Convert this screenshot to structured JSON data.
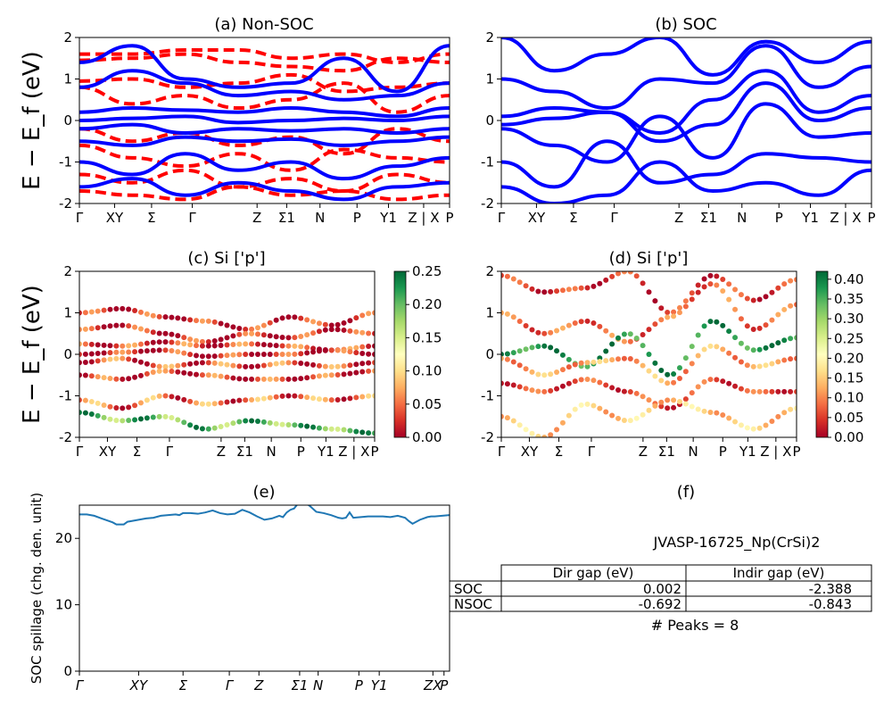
{
  "figure": {
    "ylabel_ev": "E − E_f (eV)",
    "kpath_bands": [
      "Γ",
      "XY",
      "Σ",
      "Γ",
      "Z",
      "Σ1",
      "N",
      "P",
      "Y1",
      "Z | X",
      "P"
    ],
    "kpath_spillage": [
      "Γ",
      "XY",
      "Σ",
      "Γ",
      "Z",
      "Σ1",
      "N",
      "P",
      "Y1",
      "ZX",
      "P"
    ],
    "colors": {
      "nonsoc_up": "#ff0000",
      "nonsoc_dn": "#0000ff",
      "soc": "#0000ff",
      "spillage": "#1f77b4"
    }
  },
  "chart_data": [
    {
      "id": "a",
      "type": "line",
      "title": "(a) Non-SOC",
      "ylabel": "E − E_f (eV)",
      "ylim": [
        -2,
        2
      ],
      "yticks": [
        -2,
        -1,
        0,
        1,
        2
      ],
      "series": [
        {
          "style": "dashed",
          "color": "#ff0000",
          "lines": [
            [
              1.6,
              1.6,
              1.7,
              1.7,
              1.5,
              1.6,
              1.4,
              1.6
            ],
            [
              1.45,
              1.5,
              1.6,
              1.4,
              1.3,
              1.2,
              1.5,
              1.4
            ],
            [
              0.95,
              1.0,
              0.8,
              0.9,
              1.1,
              0.7,
              0.8,
              0.9
            ],
            [
              0.8,
              0.4,
              0.6,
              0.3,
              0.5,
              0.9,
              0.2,
              0.6
            ],
            [
              -0.2,
              -0.5,
              -0.3,
              -0.6,
              -0.4,
              -0.8,
              -0.2,
              -0.5
            ],
            [
              -0.6,
              -0.9,
              -1.1,
              -0.8,
              -1.2,
              -0.7,
              -0.9,
              -1.0
            ],
            [
              -1.3,
              -1.5,
              -1.2,
              -1.6,
              -1.4,
              -1.7,
              -1.3,
              -1.5
            ],
            [
              -1.7,
              -1.8,
              -1.9,
              -1.6,
              -1.8,
              -1.7,
              -1.9,
              -1.8
            ]
          ]
        },
        {
          "style": "solid",
          "color": "#0000ff",
          "lines": [
            [
              1.4,
              1.8,
              1.0,
              0.8,
              0.9,
              1.5,
              0.7,
              1.8
            ],
            [
              0.8,
              1.2,
              0.9,
              0.6,
              0.7,
              0.5,
              0.6,
              0.9
            ],
            [
              0.2,
              0.3,
              0.25,
              0.2,
              0.3,
              0.2,
              0.1,
              0.3
            ],
            [
              0.0,
              0.05,
              0.1,
              -0.05,
              0.0,
              0.05,
              0.0,
              0.1
            ],
            [
              -0.2,
              -0.1,
              -0.3,
              -0.2,
              -0.25,
              -0.2,
              -0.3,
              -0.2
            ],
            [
              -0.5,
              -0.6,
              -0.4,
              -0.5,
              -0.45,
              -0.6,
              -0.5,
              -0.4
            ],
            [
              -1.0,
              -1.3,
              -0.8,
              -1.2,
              -1.0,
              -1.4,
              -1.1,
              -0.9
            ],
            [
              -1.6,
              -1.4,
              -1.8,
              -1.5,
              -1.7,
              -1.9,
              -1.6,
              -1.5
            ]
          ]
        }
      ]
    },
    {
      "id": "b",
      "type": "line",
      "title": "(b) SOC",
      "ylim": [
        -2,
        2
      ],
      "yticks": [
        -2,
        -1,
        0,
        1,
        2
      ],
      "series": [
        {
          "style": "solid",
          "color": "#0000ff",
          "lines": [
            [
              2.0,
              1.2,
              1.6,
              2.0,
              1.1,
              1.9,
              1.4,
              1.9
            ],
            [
              1.0,
              0.7,
              0.3,
              1.0,
              0.9,
              1.8,
              0.8,
              1.3
            ],
            [
              0.1,
              0.3,
              0.2,
              -0.3,
              0.5,
              1.2,
              0.2,
              0.6
            ],
            [
              -0.1,
              0.05,
              0.2,
              -0.5,
              -0.1,
              0.9,
              0.0,
              0.3
            ],
            [
              -0.2,
              -0.6,
              -1.0,
              0.1,
              -0.9,
              0.4,
              -0.4,
              -0.3
            ],
            [
              -1.0,
              -1.6,
              -0.5,
              -1.5,
              -1.3,
              -0.8,
              -0.9,
              -1.0
            ],
            [
              -1.6,
              -2.0,
              -1.8,
              -1.0,
              -1.7,
              -1.5,
              -1.8,
              -1.2
            ]
          ]
        }
      ]
    },
    {
      "id": "c",
      "type": "scatter",
      "title": "(c)  Si ['p']",
      "ylabel": "E − E_f (eV)",
      "ylim": [
        -2,
        2
      ],
      "yticks": [
        -2,
        -1,
        0,
        1,
        2
      ],
      "colorbar": {
        "ticks": [
          "0.00",
          "0.05",
          "0.10",
          "0.15",
          "0.20",
          "0.25"
        ],
        "range": [
          0,
          0.25
        ],
        "cmap": "RdYlGn"
      },
      "bands": [
        [
          1.0,
          1.1,
          0.9,
          0.8,
          0.6,
          0.9,
          0.7,
          1.0
        ],
        [
          0.6,
          0.7,
          0.5,
          0.3,
          0.5,
          0.4,
          0.6,
          0.5
        ],
        [
          0.25,
          0.2,
          0.3,
          0.2,
          0.25,
          0.2,
          0.1,
          0.2
        ],
        [
          0.0,
          0.05,
          0.1,
          -0.05,
          0.0,
          0.0,
          0.1,
          0.0
        ],
        [
          -0.2,
          -0.1,
          -0.3,
          -0.2,
          -0.3,
          -0.2,
          -0.3,
          -0.2
        ],
        [
          -0.5,
          -0.6,
          -0.4,
          -0.5,
          -0.6,
          -0.6,
          -0.5,
          -0.4
        ],
        [
          -1.1,
          -1.3,
          -1.0,
          -1.2,
          -1.1,
          -1.0,
          -1.1,
          -1.0
        ],
        [
          -1.4,
          -1.6,
          -1.5,
          -1.8,
          -1.6,
          -1.7,
          -1.8,
          -1.9
        ]
      ],
      "weights": [
        0.02,
        0.02,
        0.03,
        0.02,
        0.04,
        0.03,
        0.05,
        0.2
      ]
    },
    {
      "id": "d",
      "type": "scatter",
      "title": "(d) Si ['p']",
      "ylim": [
        -2,
        2
      ],
      "yticks": [
        -2,
        -1,
        0,
        1,
        2
      ],
      "colorbar": {
        "ticks": [
          "0.00",
          "0.05",
          "0.10",
          "0.15",
          "0.20",
          "0.25",
          "0.30",
          "0.35",
          "0.40"
        ],
        "range": [
          0,
          0.42
        ],
        "cmap": "RdYlGn"
      },
      "bands": [
        [
          1.9,
          1.5,
          1.6,
          2.0,
          1.0,
          1.9,
          1.3,
          1.8
        ],
        [
          1.0,
          0.5,
          0.8,
          0.3,
          0.9,
          1.7,
          0.6,
          1.2
        ],
        [
          0.0,
          0.2,
          -0.3,
          0.5,
          -0.5,
          0.8,
          0.1,
          0.4
        ],
        [
          -0.1,
          -0.5,
          -0.2,
          -0.1,
          -0.7,
          0.2,
          -0.3,
          -0.1
        ],
        [
          -0.7,
          -0.9,
          -0.6,
          -0.9,
          -1.3,
          -0.6,
          -0.9,
          -0.9
        ],
        [
          -1.5,
          -2.0,
          -1.2,
          -1.6,
          -1.1,
          -1.4,
          -1.8,
          -1.3
        ]
      ],
      "weights": [
        0.05,
        0.08,
        0.38,
        0.12,
        0.06,
        0.15,
        0.3,
        0.1
      ]
    },
    {
      "id": "e",
      "type": "line",
      "title": "(e)",
      "ylabel": "SOC spillage (chg. den. unit)",
      "ylim": [
        0,
        25
      ],
      "yticks": [
        0,
        10,
        20
      ],
      "x": [
        0,
        2,
        4,
        6,
        8,
        9,
        10,
        11,
        12,
        13,
        14,
        16,
        18,
        20,
        22,
        24,
        26,
        27,
        28,
        30,
        32,
        34,
        36,
        38,
        40,
        42,
        44,
        46,
        48,
        50,
        52,
        54,
        55,
        56,
        57,
        58,
        59,
        60,
        62,
        64,
        66,
        68,
        70,
        71,
        72,
        73,
        74,
        76,
        78,
        80,
        82,
        84,
        86,
        88,
        89,
        90,
        92,
        94,
        95,
        96,
        98,
        100
      ],
      "y": [
        23.6,
        23.6,
        23.4,
        23.0,
        22.6,
        22.4,
        22.1,
        22.1,
        22.1,
        22.5,
        22.6,
        22.8,
        23.0,
        23.1,
        23.4,
        23.5,
        23.6,
        23.5,
        23.8,
        23.8,
        23.7,
        23.9,
        24.2,
        23.8,
        23.6,
        23.7,
        24.3,
        23.9,
        23.3,
        22.8,
        23.0,
        23.4,
        23.2,
        23.9,
        24.3,
        24.5,
        25.2,
        25.4,
        25.0,
        24.0,
        23.8,
        23.5,
        23.1,
        23.0,
        23.1,
        23.9,
        23.1,
        23.2,
        23.3,
        23.3,
        23.3,
        23.2,
        23.4,
        23.1,
        22.6,
        22.2,
        22.8,
        23.2,
        23.3,
        23.3,
        23.4,
        23.5
      ]
    },
    {
      "id": "f",
      "type": "table",
      "title": "(f)",
      "caption": "JVASP-16725_Np(CrSi)2",
      "columns": [
        "",
        "Dir gap (eV)",
        "Indir gap (eV)"
      ],
      "rows": [
        [
          "SOC",
          "0.002",
          "-2.388"
        ],
        [
          "NSOC",
          "-0.692",
          "-0.843"
        ]
      ],
      "footer": "# Peaks = 8"
    }
  ]
}
